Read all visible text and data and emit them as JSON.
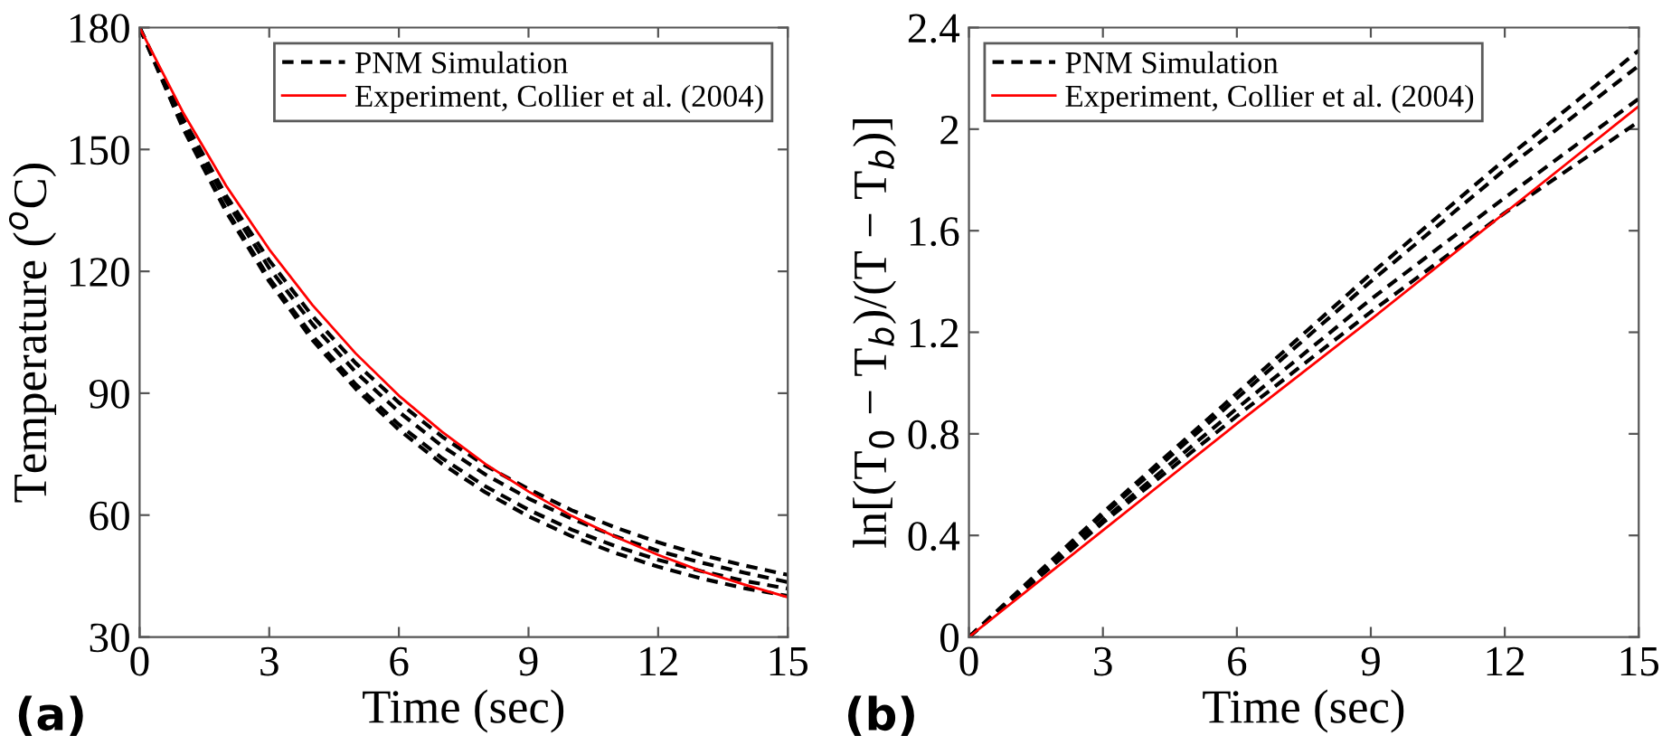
{
  "chart_data": [
    {
      "type": "line",
      "xlabel": "Time (sec)",
      "ylabel": "Temperature ($^{o}$C)",
      "annotations": [
        "(a)"
      ],
      "x": [
        0,
        1,
        2,
        3,
        4,
        5,
        6,
        7,
        8,
        9,
        10,
        11,
        12,
        13,
        14,
        15
      ],
      "xlim": [
        0,
        15
      ],
      "xticks": [
        0,
        3,
        6,
        9,
        12,
        15
      ],
      "ylim": [
        30,
        180
      ],
      "yticks": [
        30,
        60,
        90,
        120,
        150,
        180
      ],
      "grid": false,
      "legend": "top right",
      "marker": "none",
      "series": [
        {
          "name": "PNM Simulation",
          "color": "#000000",
          "line_style": "dashed",
          "values": [
            180,
            157.7,
            138.7,
            122.7,
            109.0,
            97.4,
            87.7,
            79.3,
            72.2,
            66.4,
            61.2,
            57.0,
            53.3,
            50.2,
            47.6,
            45.3
          ]
        },
        {
          "color": "#000000",
          "line_style": "dashed",
          "values": [
            180,
            156.9,
            137.4,
            120.8,
            107.0,
            95.2,
            85.4,
            77.0,
            70.0,
            64.1,
            59.1,
            54.8,
            51.2,
            48.3,
            45.8,
            43.5
          ]
        },
        {
          "color": "#000000",
          "line_style": "dashed",
          "values": [
            180,
            155.6,
            135.3,
            118.3,
            104.1,
            92.2,
            82.3,
            74.0,
            67.1,
            61.3,
            56.4,
            52.4,
            49.0,
            46.2,
            43.8,
            41.9
          ]
        },
        {
          "color": "#000000",
          "line_style": "dashed",
          "values": [
            180,
            155.3,
            134.7,
            117.5,
            103.1,
            91.1,
            81.0,
            72.6,
            65.6,
            59.7,
            54.8,
            50.7,
            47.3,
            44.4,
            42.0,
            40.1
          ]
        },
        {
          "name": "Experiment, Collier et al. (2004)",
          "color": "#ff0000",
          "line_style": "solid",
          "values": [
            180,
            159.2,
            141.1,
            125.4,
            111.7,
            99.8,
            89.4,
            80.5,
            72.6,
            65.8,
            59.8,
            54.7,
            50.2,
            46.2,
            42.9,
            39.8
          ]
        }
      ]
    },
    {
      "type": "line",
      "xlabel": "Time (sec)",
      "ylabel": "ln[(T$_{0}$ − T$_{b}$)/(T − T$_{b}$)]",
      "annotations": [
        "(b)"
      ],
      "x": [
        0,
        3,
        6,
        9,
        12,
        15
      ],
      "xlim": [
        0,
        15
      ],
      "xticks": [
        0,
        3,
        6,
        9,
        12,
        15
      ],
      "ylim": [
        0,
        2.4
      ],
      "yticks": [
        0,
        0.4,
        0.8,
        1.2,
        1.6,
        2,
        2.4
      ],
      "grid": false,
      "legend": "top left",
      "marker": "none",
      "series": [
        {
          "name": "PNM Simulation",
          "color": "#000000",
          "line_style": "dashed",
          "values": [
            0,
            0.49,
            0.96,
            1.43,
            1.88,
            2.31
          ]
        },
        {
          "color": "#000000",
          "line_style": "dashed",
          "values": [
            0,
            0.48,
            0.94,
            1.4,
            1.84,
            2.25
          ]
        },
        {
          "color": "#000000",
          "line_style": "dashed",
          "values": [
            0,
            0.46,
            0.9,
            1.33,
            1.73,
            2.12
          ]
        },
        {
          "color": "#000000",
          "line_style": "dashed",
          "values": [
            0,
            0.45,
            0.87,
            1.28,
            1.67,
            2.03
          ]
        },
        {
          "name": "Experiment, Collier et al. (2004)",
          "color": "#ff0000",
          "line_style": "solid",
          "values": [
            0,
            0.42,
            0.84,
            1.25,
            1.67,
            2.09
          ]
        }
      ]
    }
  ]
}
